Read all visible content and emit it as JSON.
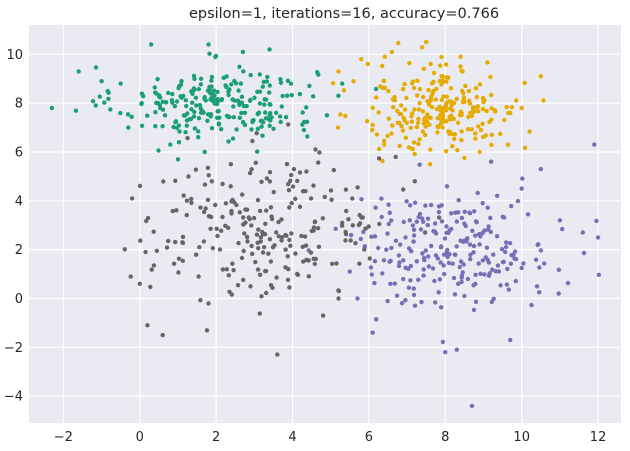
{
  "chart_data": {
    "type": "scatter",
    "title": "epsilon=1, iterations=16, accuracy=0.766",
    "xlabel": "",
    "ylabel": "",
    "xlim": [
      -2.9,
      12.6
    ],
    "ylim": [
      -5.1,
      11.2
    ],
    "x_ticks": [
      -2,
      0,
      2,
      4,
      6,
      8,
      10,
      12
    ],
    "y_ticks": [
      -4,
      -2,
      0,
      2,
      4,
      6,
      8,
      10
    ],
    "grid": true,
    "background_color": "#eaeaf2",
    "grid_color": "#ffffff",
    "legend": "none",
    "series": [
      {
        "color": "#1b9e77",
        "center": [
          2.0,
          8.0
        ],
        "spread": [
          1.3,
          0.75
        ],
        "points": [
          [
            -2.3,
            7.8
          ],
          [
            -1.6,
            9.3
          ],
          [
            -1.0,
            8.9
          ],
          [
            0.3,
            10.4
          ],
          [
            1.8,
            10.4
          ],
          [
            2.7,
            10.1
          ],
          [
            3.4,
            10.2
          ],
          [
            4.9,
            7.5
          ],
          [
            -0.5,
            8.8
          ],
          [
            0.8,
            6.3
          ],
          [
            1.0,
            5.7
          ],
          [
            5.2,
            8.3
          ],
          [
            -0.3,
            7.0
          ],
          [
            1.7,
            6.0
          ],
          [
            4.3,
            6.9
          ],
          [
            5.3,
            8.8
          ]
        ]
      },
      {
        "color": "#e6ab02",
        "center": [
          7.9,
          7.8
        ],
        "spread": [
          1.05,
          0.95
        ],
        "points": [
          [
            5.8,
            9.8
          ],
          [
            7.5,
            10.5
          ],
          [
            6.6,
            10.1
          ],
          [
            8.4,
            9.9
          ],
          [
            10.5,
            9.1
          ],
          [
            10.0,
            7.8
          ],
          [
            9.7,
            7.6
          ],
          [
            6.4,
            6.3
          ],
          [
            7.6,
            5.5
          ],
          [
            8.9,
            6.0
          ],
          [
            5.6,
            8.9
          ],
          [
            6.1,
            7.1
          ]
        ]
      },
      {
        "color": "#7570b3",
        "center": [
          8.2,
          2.0
        ],
        "spread": [
          1.3,
          1.15
        ],
        "points": [
          [
            11.9,
            6.3
          ],
          [
            11.6,
            2.7
          ],
          [
            11.0,
            3.2
          ],
          [
            10.5,
            5.3
          ],
          [
            10.0,
            4.5
          ],
          [
            9.2,
            5.6
          ],
          [
            8.0,
            -2.2
          ],
          [
            8.7,
            -4.4
          ],
          [
            8.3,
            -2.1
          ],
          [
            9.7,
            -1.7
          ],
          [
            5.5,
            1.1
          ],
          [
            5.7,
            0.0
          ],
          [
            6.1,
            -1.4
          ],
          [
            10.4,
            0.5
          ],
          [
            12.0,
            2.5
          ]
        ]
      },
      {
        "color": "#666666",
        "center": [
          3.3,
          2.9
        ],
        "spread": [
          1.6,
          1.5
        ],
        "points": [
          [
            3.6,
            -2.3
          ],
          [
            -0.2,
            4.1
          ],
          [
            0.2,
            -1.1
          ],
          [
            0.6,
            -1.5
          ],
          [
            4.8,
            -0.7
          ],
          [
            5.3,
            3.1
          ],
          [
            6.7,
            5.8
          ],
          [
            7.2,
            4.8
          ],
          [
            4.6,
            6.1
          ],
          [
            0.0,
            0.6
          ],
          [
            1.8,
            -0.2
          ],
          [
            2.9,
            0.5
          ]
        ]
      }
    ]
  }
}
